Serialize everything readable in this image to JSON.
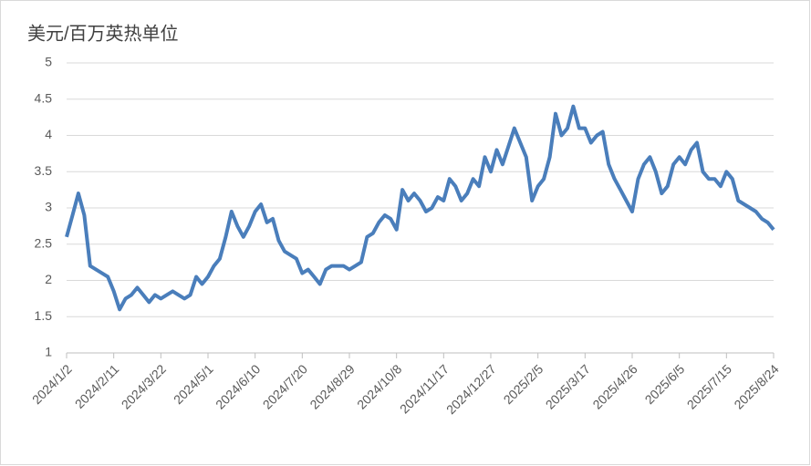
{
  "chart_data": {
    "type": "line",
    "y_label": "美元/百万英热单位",
    "categories": [
      "2024/1/2",
      null,
      null,
      null,
      null,
      null,
      null,
      null,
      "2024/2/11",
      null,
      null,
      null,
      null,
      null,
      null,
      null,
      "2024/3/22",
      null,
      null,
      null,
      null,
      null,
      null,
      null,
      "2024/5/1",
      null,
      null,
      null,
      null,
      null,
      null,
      null,
      "2024/6/10",
      null,
      null,
      null,
      null,
      null,
      null,
      null,
      "2024/7/20",
      null,
      null,
      null,
      null,
      null,
      null,
      null,
      "2024/8/29",
      null,
      null,
      null,
      null,
      null,
      null,
      null,
      "2024/10/8",
      null,
      null,
      null,
      null,
      null,
      null,
      null,
      "2024/11/17",
      null,
      null,
      null,
      null,
      null,
      null,
      null,
      "2024/12/27",
      null,
      null,
      null,
      null,
      null,
      null,
      null,
      "2025/2/5",
      null,
      null,
      null,
      null,
      null,
      null,
      null,
      "2025/3/17",
      null,
      null,
      null,
      null,
      null,
      null,
      null,
      "2025/4/26",
      null,
      null,
      null,
      null,
      null,
      null,
      null,
      "2025/6/5",
      null,
      null,
      null,
      null,
      null,
      null,
      null,
      "2025/7/15",
      null,
      null,
      null,
      null,
      null,
      null,
      null,
      "2025/8/24"
    ],
    "values": [
      2.6,
      2.9,
      3.2,
      2.9,
      2.2,
      2.15,
      2.1,
      2.05,
      1.85,
      1.6,
      1.75,
      1.8,
      1.9,
      1.8,
      1.7,
      1.8,
      1.75,
      1.8,
      1.85,
      1.8,
      1.75,
      1.8,
      2.05,
      1.95,
      2.05,
      2.2,
      2.3,
      2.6,
      2.95,
      2.75,
      2.6,
      2.75,
      2.95,
      3.05,
      2.8,
      2.85,
      2.55,
      2.4,
      2.35,
      2.3,
      2.1,
      2.15,
      2.05,
      1.95,
      2.15,
      2.2,
      2.2,
      2.2,
      2.15,
      2.2,
      2.25,
      2.6,
      2.65,
      2.8,
      2.9,
      2.85,
      2.7,
      3.25,
      3.1,
      3.2,
      3.1,
      2.95,
      3.0,
      3.15,
      3.1,
      3.4,
      3.3,
      3.1,
      3.2,
      3.4,
      3.3,
      3.7,
      3.5,
      3.8,
      3.6,
      3.85,
      4.1,
      3.9,
      3.7,
      3.1,
      3.3,
      3.4,
      3.7,
      4.3,
      4.0,
      4.1,
      4.4,
      4.1,
      4.1,
      3.9,
      4.0,
      4.05,
      3.6,
      3.4,
      3.25,
      3.1,
      2.95,
      3.4,
      3.6,
      3.7,
      3.5,
      3.2,
      3.3,
      3.6,
      3.7,
      3.6,
      3.8,
      3.9,
      3.5,
      3.4,
      3.4,
      3.3,
      3.5,
      3.4,
      3.1,
      3.05,
      3.0,
      2.95,
      2.85,
      2.8,
      2.7
    ],
    "color": "#4a7ebb",
    "ylim": [
      1,
      5
    ],
    "yticks": [
      1,
      1.5,
      2,
      2.5,
      3,
      3.5,
      4,
      4.5,
      5
    ],
    "grid": true
  }
}
